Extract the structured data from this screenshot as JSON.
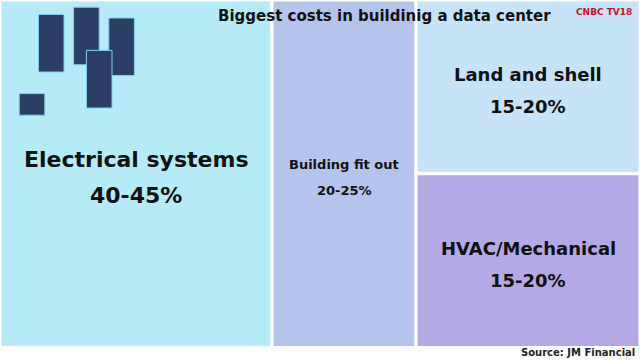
{
  "chart_data": {
    "type": "treemap",
    "title": "Biggest costs in buildinig a data center",
    "categories": [
      "Electrical systems",
      "Building fit out",
      "Land and shell",
      "HVAC/Mechanical"
    ],
    "values": [
      [
        40,
        45
      ],
      [
        20,
        25
      ],
      [
        15,
        20
      ],
      [
        15,
        20
      ]
    ],
    "value_labels": [
      "40-45%",
      "20-25%",
      "15-20%",
      "15-20%"
    ],
    "colors": [
      "#b5ebf7",
      "#b4c4ec",
      "#c6e3f8",
      "#b4a9e4"
    ],
    "data_labels": true,
    "source": "Source: JM Financial",
    "logo": "CNBC TV18"
  }
}
